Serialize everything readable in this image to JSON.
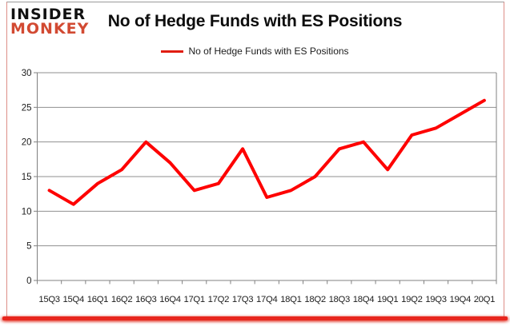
{
  "logo": {
    "line1": "INSIDER",
    "line2": "MONKEY"
  },
  "header": {
    "title": "No of Hedge Funds with ES Positions"
  },
  "legend": {
    "label": "No of Hedge Funds with ES Positions"
  },
  "colors": {
    "series_line": "#fe0000",
    "legend_swatch": "#e01d10",
    "logo_black": "#111111",
    "logo_red": "#d24a32",
    "accent_bar": "#e8261d",
    "grid": "#8f8f8f",
    "axis": "#808080",
    "tick_text": "#1c1c1c"
  },
  "chart_data": {
    "type": "line",
    "title": "No of Hedge Funds with ES Positions",
    "categories": [
      "15Q3",
      "15Q4",
      "16Q1",
      "16Q2",
      "16Q3",
      "16Q4",
      "17Q1",
      "17Q2",
      "17Q3",
      "17Q4",
      "18Q1",
      "18Q2",
      "18Q3",
      "18Q4",
      "19Q1",
      "19Q2",
      "19Q3",
      "19Q4",
      "20Q1"
    ],
    "series": [
      {
        "name": "No of Hedge Funds with ES Positions",
        "values": [
          13,
          11,
          14,
          16,
          20,
          17,
          13,
          14,
          19,
          12,
          13,
          15,
          19,
          20,
          16,
          21,
          22,
          24,
          26
        ]
      }
    ],
    "xlabel": "",
    "ylabel": "",
    "ylim": [
      0,
      30
    ],
    "yticks": [
      0,
      5,
      10,
      15,
      20,
      25,
      30
    ],
    "grid": "horizontal",
    "legend_position": "top-center"
  }
}
